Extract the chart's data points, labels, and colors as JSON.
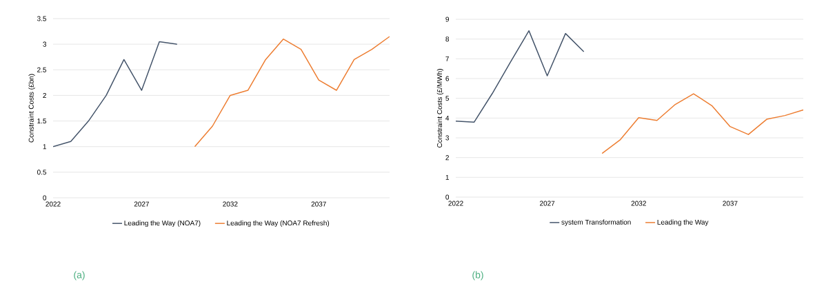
{
  "chart_data": [
    {
      "type": "line",
      "ylabel": "Constraint Costs (£bn)",
      "categories": [
        "2022",
        null,
        null,
        null,
        null,
        "2027",
        null,
        null,
        null,
        null,
        "2032",
        null,
        null,
        null,
        null,
        "2037",
        null,
        null,
        null,
        null
      ],
      "ylim": [
        0,
        3.5
      ],
      "yticks": [
        0,
        0.5,
        1,
        1.5,
        2,
        2.5,
        3,
        3.5
      ],
      "grid": "y",
      "legend": "bottom",
      "annotations": [
        "(a)"
      ],
      "series": [
        {
          "name": "Leading the Way (NOA7)",
          "color": "#44546a",
          "values": [
            1,
            1.1,
            1.5,
            2.0,
            2.7,
            2.1,
            3.05,
            3.0,
            null,
            null,
            null,
            null,
            null,
            null,
            null,
            null,
            null,
            null,
            null,
            null
          ]
        },
        {
          "name": "Leading the Way (NOA7 Refresh)",
          "color": "#ed7d31",
          "values": [
            null,
            null,
            null,
            null,
            null,
            null,
            null,
            null,
            1.0,
            1.4,
            2.0,
            2.1,
            2.7,
            3.1,
            2.9,
            2.3,
            2.1,
            2.7,
            2.9,
            3.15
          ]
        }
      ]
    },
    {
      "type": "line",
      "ylabel": "Constraint Costs (£/MWh)",
      "categories": [
        "2022",
        null,
        null,
        null,
        null,
        "2027",
        null,
        null,
        null,
        null,
        "2032",
        null,
        null,
        null,
        null,
        "2037",
        null,
        null,
        null,
        null
      ],
      "ylim": [
        0,
        9
      ],
      "yticks": [
        0,
        1,
        2,
        3,
        4,
        5,
        6,
        7,
        8,
        9
      ],
      "grid": "y",
      "legend": "bottom",
      "annotations": [
        "(b)"
      ],
      "series": [
        {
          "name": "system Transformation",
          "color": "#44546a",
          "values": [
            3.85,
            3.79,
            5.25,
            6.85,
            8.42,
            6.14,
            8.28,
            7.36,
            null,
            null,
            null,
            null,
            null,
            null,
            null,
            null,
            null,
            null,
            null,
            null
          ]
        },
        {
          "name": "Leading the Way",
          "color": "#ed7d31",
          "values": [
            null,
            null,
            null,
            null,
            null,
            null,
            null,
            null,
            2.21,
            2.91,
            4.02,
            3.88,
            4.69,
            5.23,
            4.63,
            3.57,
            3.17,
            3.94,
            4.13,
            4.41
          ]
        }
      ]
    }
  ]
}
